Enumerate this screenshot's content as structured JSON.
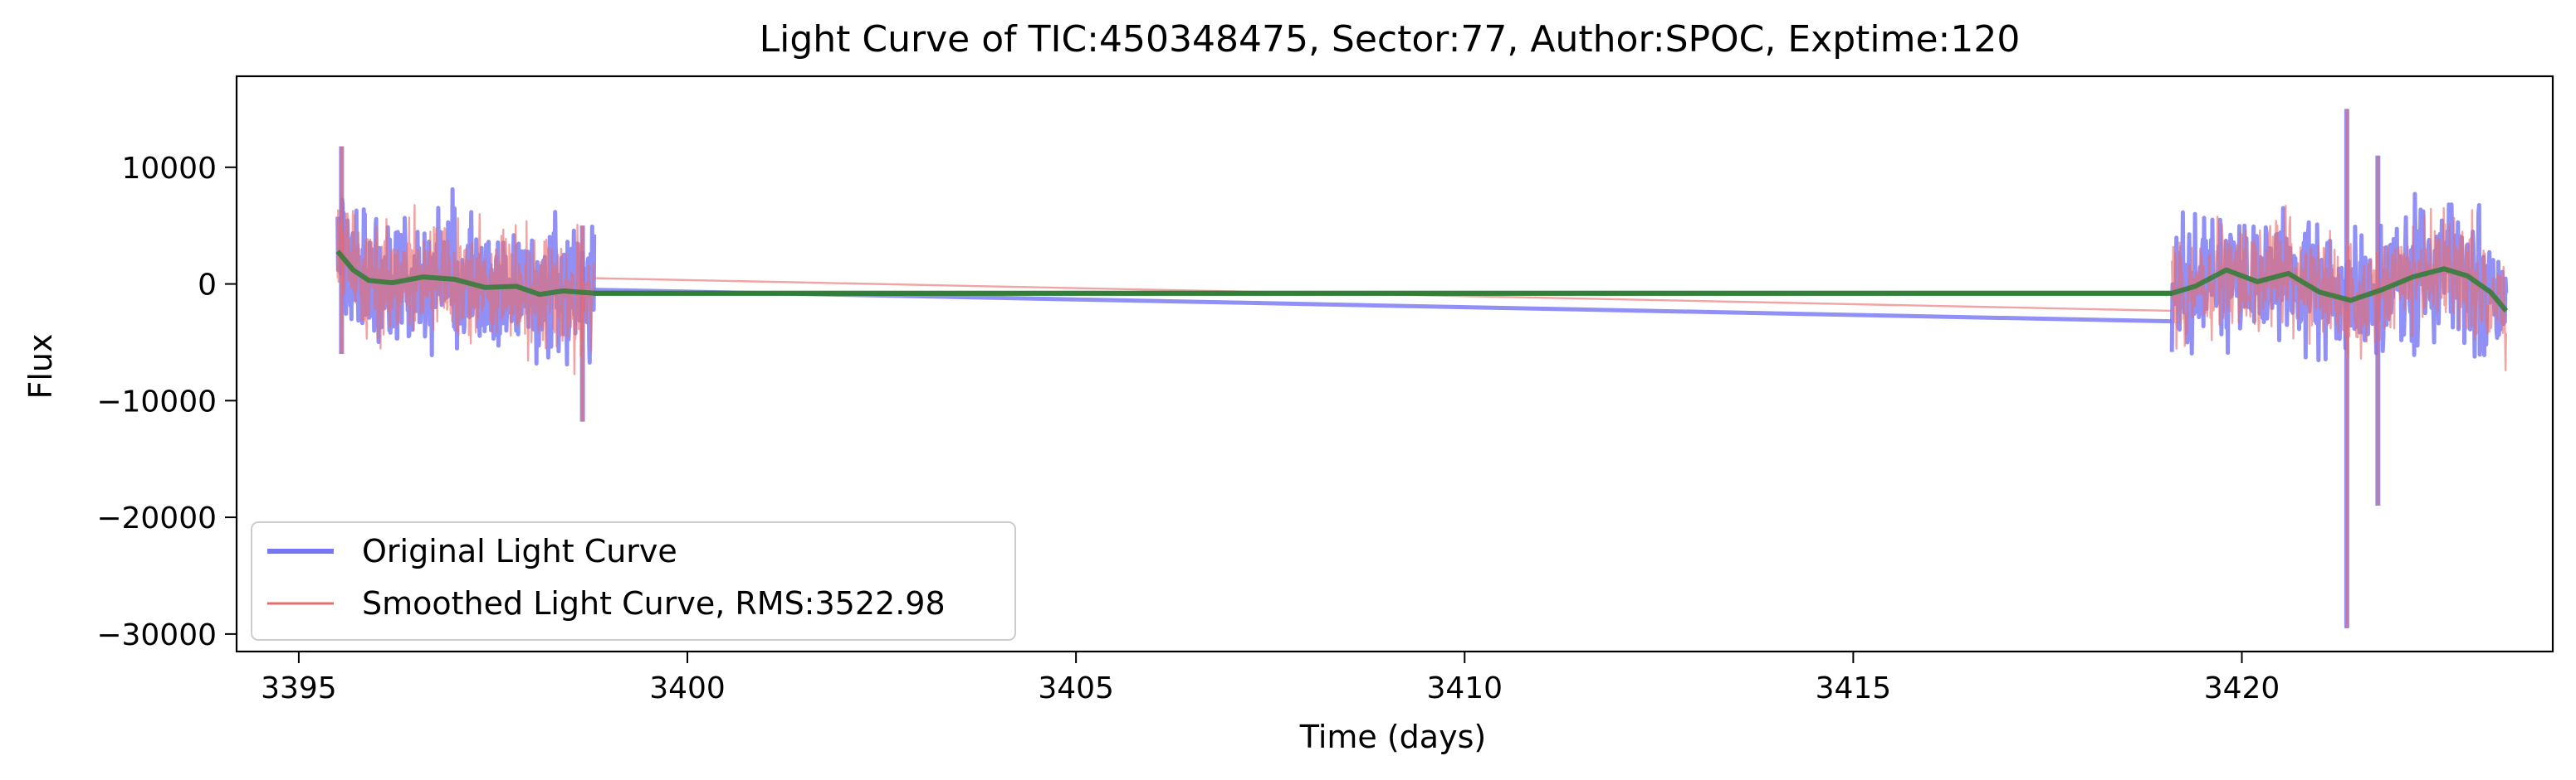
{
  "chart_data": {
    "type": "line",
    "title": "Light Curve of TIC:450348475, Sector:77, Author:SPOC, Exptime:120",
    "xlabel": "Time (days)",
    "ylabel": "Flux",
    "xlim": [
      3394.2,
      3424.0
    ],
    "ylim": [
      -31500,
      17800
    ],
    "xticks": [
      3395,
      3400,
      3405,
      3410,
      3415,
      3420
    ],
    "xtick_labels": [
      "3395",
      "3400",
      "3405",
      "3410",
      "3415",
      "3420"
    ],
    "yticks": [
      10000,
      0,
      -10000,
      -20000,
      -30000
    ],
    "ytick_labels": [
      "10000",
      "0",
      "−10000",
      "−20000",
      "−30000"
    ],
    "grid": false,
    "legend_position": "lower-left",
    "segments": [
      {
        "start": 3395.5,
        "end": 3398.8
      },
      {
        "start": 3419.1,
        "end": 3423.4
      }
    ],
    "series": [
      {
        "name": "Original Light Curve",
        "color": "#7777f5",
        "style": "noisy",
        "noise_amplitude": 6500,
        "gap_line": [
          [
            3398.8,
            -500
          ],
          [
            3419.1,
            -3200
          ]
        ]
      },
      {
        "name": "Smoothed Light Curve, RMS:3522.98",
        "color": "#ea6b6b",
        "style": "noisy",
        "noise_amplitude": 5800,
        "gap_line": [
          [
            3398.8,
            500
          ],
          [
            3419.1,
            -2300
          ]
        ]
      },
      {
        "name": "",
        "color": "#2e7d32",
        "style": "trend",
        "points": [
          [
            3395.5,
            2800
          ],
          [
            3395.7,
            1200
          ],
          [
            3395.9,
            300
          ],
          [
            3396.2,
            100
          ],
          [
            3396.6,
            600
          ],
          [
            3397.0,
            400
          ],
          [
            3397.4,
            -300
          ],
          [
            3397.8,
            -200
          ],
          [
            3398.1,
            -900
          ],
          [
            3398.4,
            -600
          ],
          [
            3398.8,
            -800
          ],
          [
            3419.1,
            -800
          ],
          [
            3419.4,
            -200
          ],
          [
            3419.8,
            1200
          ],
          [
            3420.2,
            200
          ],
          [
            3420.6,
            900
          ],
          [
            3421.0,
            -700
          ],
          [
            3421.4,
            -1400
          ],
          [
            3421.8,
            -500
          ],
          [
            3422.2,
            600
          ],
          [
            3422.6,
            1300
          ],
          [
            3422.9,
            700
          ],
          [
            3423.2,
            -700
          ],
          [
            3423.4,
            -2300
          ]
        ],
        "gap_line": [
          [
            3398.8,
            -800
          ],
          [
            3419.1,
            -800
          ]
        ]
      }
    ],
    "spikes": [
      {
        "x": 3395.55,
        "min": -6000,
        "max": 11800
      },
      {
        "x": 3398.65,
        "min": -11800,
        "max": 5000
      },
      {
        "x": 3421.35,
        "min": -29500,
        "max": 15000
      },
      {
        "x": 3421.75,
        "min": -19000,
        "max": 11000
      }
    ]
  }
}
